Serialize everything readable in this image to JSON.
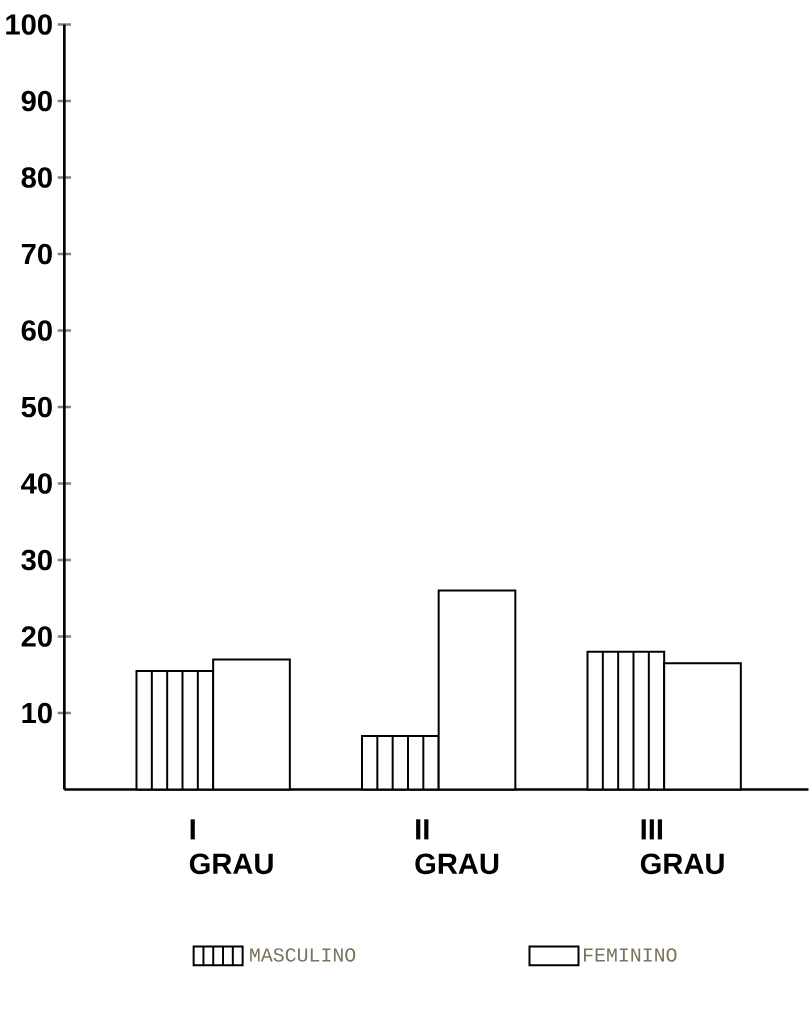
{
  "chart_data": {
    "type": "bar",
    "categories": [
      "I GRAU",
      "II GRAU",
      "III GRAU"
    ],
    "series": [
      {
        "name": "MASCULINO",
        "color": "#000000",
        "values": [
          15.5,
          7,
          18
        ]
      },
      {
        "name": "FEMININO",
        "color": "#000000",
        "values": [
          17,
          26,
          16.5
        ]
      }
    ],
    "ylim": [
      0,
      100
    ],
    "yticks": [
      10,
      20,
      30,
      40,
      50,
      60,
      70,
      80,
      90,
      100
    ],
    "grid": false,
    "legend": "bottom"
  }
}
